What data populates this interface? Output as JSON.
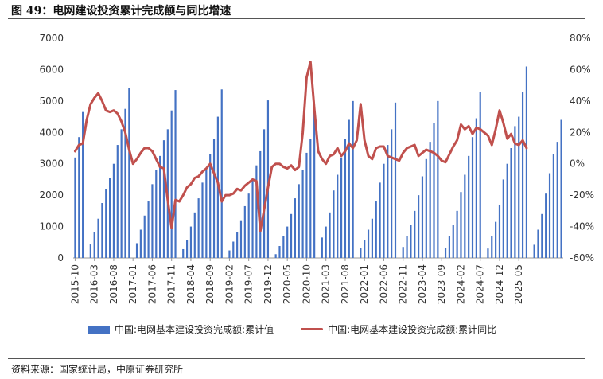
{
  "figure": {
    "title": "图 49：电网建设投资累计完成额与同比增速",
    "source": "资料来源：国家统计局，中原证券研究所"
  },
  "chart_data": {
    "type": "bar",
    "y_left_ticks": [
      0,
      1000,
      2000,
      3000,
      4000,
      5000,
      6000,
      7000
    ],
    "y_right_ticks": [
      "-60%",
      "-40%",
      "-20%",
      "0%",
      "20%",
      "40%",
      "60%",
      "80%"
    ],
    "ylim_left": [
      0,
      7000
    ],
    "ylim_right": [
      -60,
      80
    ],
    "x_ticks": [
      "2015-10",
      "2016-03",
      "2016-08",
      "2017-01",
      "2017-06",
      "2017-11",
      "2018-04",
      "2018-09",
      "2019-02",
      "2019-07",
      "2019-12",
      "2020-05",
      "2020-10",
      "2021-03",
      "2021-08",
      "2022-01",
      "2022-06",
      "2022-11",
      "2023-04",
      "2023-09",
      "2024-02",
      "2024-07",
      "2024-12",
      "2025-05"
    ],
    "series": [
      {
        "name": "中国:电网基本建设投资完成额:累计值",
        "type": "bar",
        "color": "#4472c4",
        "values": [
          3200,
          3850,
          4650,
          null,
          430,
          820,
          1250,
          1750,
          2200,
          2550,
          3000,
          3600,
          4100,
          4750,
          5420,
          null,
          470,
          900,
          1350,
          1800,
          2350,
          2800,
          3250,
          3750,
          4100,
          4700,
          5350,
          null,
          280,
          580,
          1000,
          1450,
          1900,
          2400,
          2850,
          3300,
          3800,
          4500,
          5370,
          null,
          240,
          520,
          830,
          1200,
          1650,
          2050,
          2500,
          2950,
          3400,
          4100,
          5020,
          null,
          120,
          380,
          700,
          1000,
          1400,
          1900,
          2350,
          2800,
          3350,
          3800,
          4700,
          null,
          650,
          1000,
          1450,
          2150,
          2650,
          3200,
          3800,
          4400,
          5000,
          null,
          310,
          580,
          900,
          1250,
          1800,
          2400,
          3000,
          3600,
          4100,
          4950,
          null,
          350,
          700,
          1050,
          1500,
          2000,
          2600,
          3150,
          3700,
          4300,
          5000,
          null,
          330,
          700,
          1050,
          1500,
          2100,
          2650,
          3250,
          3850,
          4450,
          5300,
          null,
          300,
          700,
          1150,
          1700,
          2500,
          3000,
          3500,
          4200,
          4500,
          5300,
          6100,
          null,
          420,
          900,
          1400,
          2050,
          2700,
          3300,
          3700,
          4400
        ]
      },
      {
        "name": "中国:电网基本建设投资完成额:累计同比",
        "type": "line",
        "color": "#c0504d",
        "values": [
          8,
          12,
          13,
          28,
          38,
          42,
          45,
          40,
          34,
          33,
          34,
          32,
          27,
          20,
          9,
          0,
          3,
          7,
          10,
          10,
          8,
          3,
          -2,
          -3,
          -23,
          -41,
          -23,
          -24,
          -20,
          -15,
          -13,
          -9,
          -8,
          -5,
          -3,
          0,
          -6,
          -12,
          -24,
          -20,
          -20,
          -19,
          -16,
          -17,
          -14,
          -12,
          -10,
          -11,
          -43,
          -29,
          -15,
          -2,
          0,
          0,
          -2,
          -3,
          -1,
          -4,
          -2,
          20,
          55,
          65,
          35,
          8,
          3,
          0,
          5,
          6,
          10,
          5,
          8,
          13,
          10,
          15,
          38,
          15,
          5,
          3,
          10,
          11,
          11,
          5,
          4,
          3,
          2,
          7,
          10,
          11,
          12,
          5,
          7,
          9,
          8,
          7,
          5,
          2,
          1,
          6,
          11,
          15,
          25,
          22,
          24,
          19,
          23,
          22,
          20,
          18,
          12,
          22,
          34,
          26,
          16,
          19,
          13,
          12,
          15,
          10
        ]
      }
    ]
  }
}
